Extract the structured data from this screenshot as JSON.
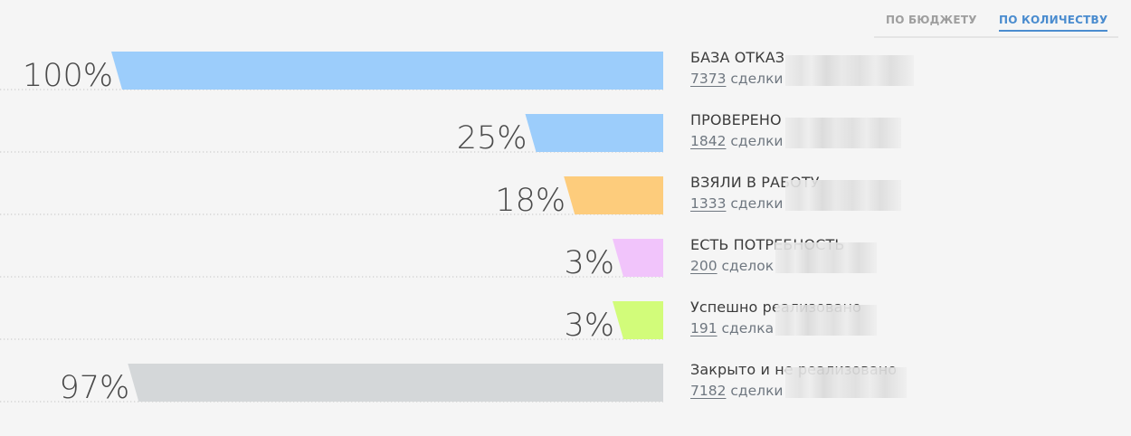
{
  "tabs": {
    "budget": "ПО БЮДЖЕТУ",
    "count": "ПО КОЛИЧЕСТВУ",
    "active": "count"
  },
  "chart_data": {
    "type": "bar",
    "categories": [
      "БАЗА ОТКАЗ",
      "ПРОВЕРЕНО",
      "ВЗЯЛИ В РАБОТУ",
      "ЕСТЬ ПОТРЕБНОСТЬ",
      "Успешно реализовано",
      "Закрыто и не реализовано"
    ],
    "values": [
      7373,
      1842,
      1333,
      200,
      191,
      7182
    ],
    "percents": [
      100,
      25,
      18,
      3,
      3,
      97
    ],
    "percent_labels": [
      "100%",
      "25%",
      "18%",
      "3%",
      "3%",
      "97%"
    ],
    "count_units": [
      "сделки",
      "сделки",
      "сделки",
      "сделок",
      "сделка",
      "сделки"
    ],
    "colors": [
      "#9ccdfb",
      "#9ccdfb",
      "#fdcc7c",
      "#f1c4fb",
      "#d2fc7a",
      "#d4d7d9"
    ],
    "orientation": "horizontal-right-aligned",
    "grid": false
  }
}
